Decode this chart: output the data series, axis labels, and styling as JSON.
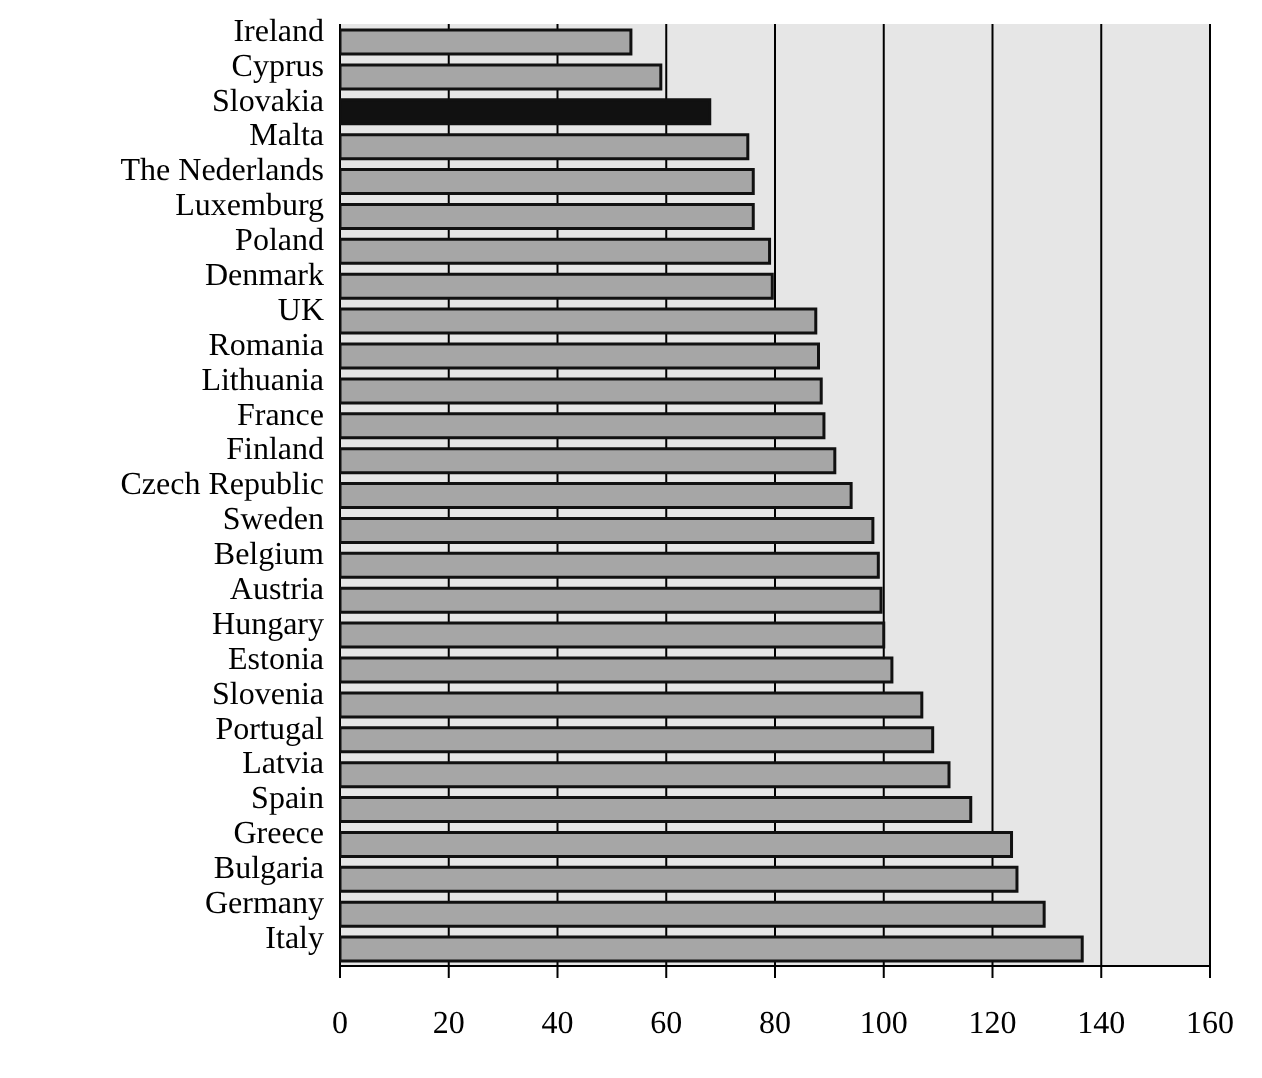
{
  "chart_data": {
    "type": "bar",
    "orientation": "horizontal",
    "categories": [
      "Ireland",
      "Cyprus",
      "Slovakia",
      "Malta",
      "The Nederlands",
      "Luxemburg",
      "Poland",
      "Denmark",
      "UK",
      "Romania",
      "Lithuania",
      "France",
      "Finland",
      "Czech Republic",
      "Sweden",
      "Belgium",
      "Austria",
      "Hungary",
      "Estonia",
      "Slovenia",
      "Portugal",
      "Latvia",
      "Spain",
      "Greece",
      "Bulgaria",
      "Germany",
      "Italy"
    ],
    "values": [
      53.5,
      59,
      68,
      75,
      76,
      76,
      79,
      79.5,
      87.5,
      88,
      88.5,
      89,
      91,
      94,
      98,
      99,
      99.5,
      100,
      101.5,
      107,
      109,
      112,
      116,
      123.5,
      124.5,
      129.5,
      136.5
    ],
    "colors": [
      "#a6a6a6",
      "#a6a6a6",
      "#111111",
      "#a6a6a6",
      "#a6a6a6",
      "#a6a6a6",
      "#a6a6a6",
      "#a6a6a6",
      "#a6a6a6",
      "#a6a6a6",
      "#a6a6a6",
      "#a6a6a6",
      "#a6a6a6",
      "#a6a6a6",
      "#a6a6a6",
      "#a6a6a6",
      "#a6a6a6",
      "#a6a6a6",
      "#a6a6a6",
      "#a6a6a6",
      "#a6a6a6",
      "#a6a6a6",
      "#a6a6a6",
      "#a6a6a6",
      "#a6a6a6",
      "#a6a6a6",
      "#a6a6a6"
    ],
    "xlim": [
      0,
      160
    ],
    "xticks": [
      0,
      20,
      40,
      60,
      80,
      100,
      120,
      140,
      160
    ],
    "grid": "x",
    "legend": false
  }
}
